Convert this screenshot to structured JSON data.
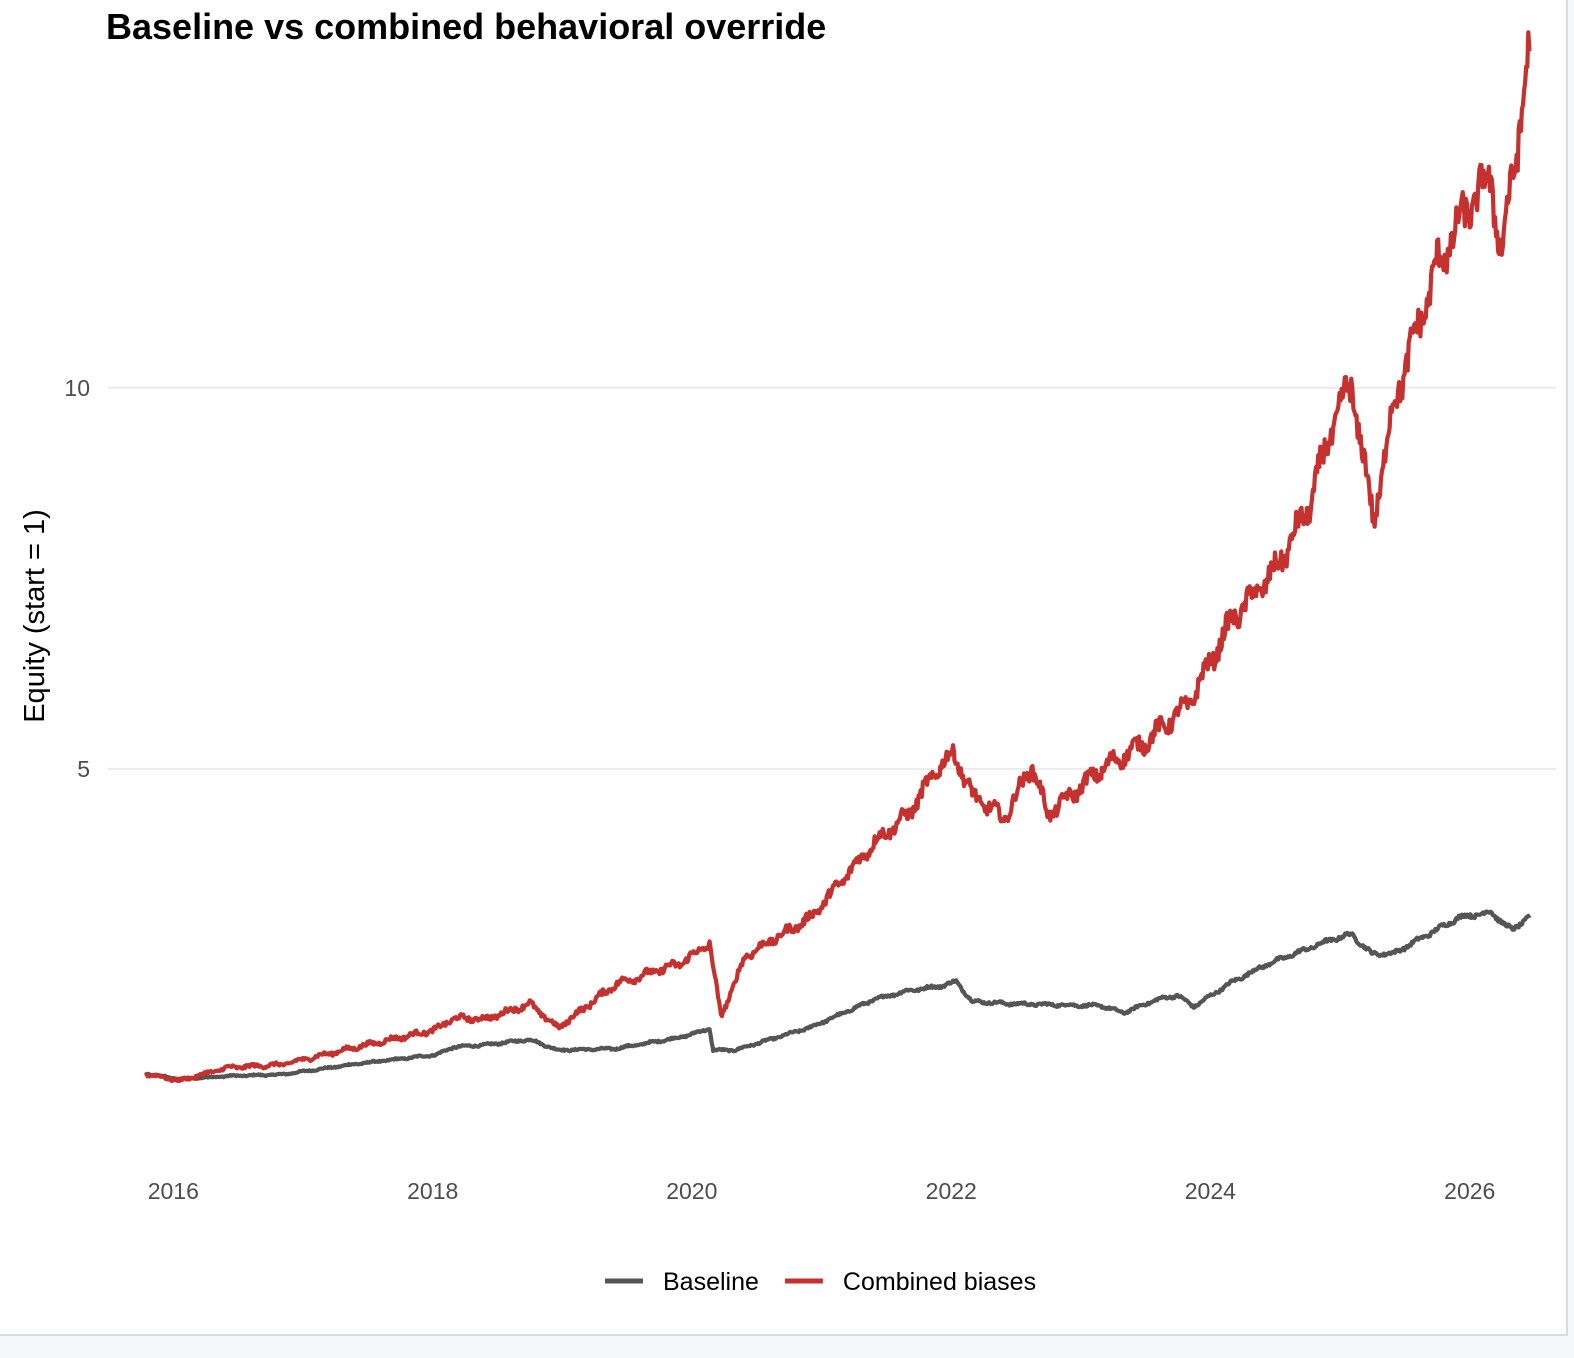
{
  "chart_data": {
    "type": "line",
    "title": "Baseline vs combined behavioral override",
    "xlabel": "",
    "ylabel": "Equity (start = 1)",
    "x_ticks": [
      "2016",
      "2018",
      "2020",
      "2022",
      "2024",
      "2026"
    ],
    "y_ticks": [
      5,
      10
    ],
    "ylim": [
      0.0,
      14.3
    ],
    "xlim": [
      "2015-07-01",
      "2026-09-01"
    ],
    "grid": "horizontal major only",
    "legend": "bottom",
    "colors": {
      "Baseline": "#555555",
      "Combined biases": "#c4312f"
    },
    "series": [
      {
        "name": "Baseline",
        "points": [
          [
            "2015-10-15",
            1.0
          ],
          [
            "2016-01-20",
            0.93
          ],
          [
            "2016-06-01",
            0.97
          ],
          [
            "2016-11-01",
            0.99
          ],
          [
            "2017-06-01",
            1.13
          ],
          [
            "2018-01-10",
            1.25
          ],
          [
            "2018-03-01",
            1.35
          ],
          [
            "2018-06-01",
            1.38
          ],
          [
            "2018-10-01",
            1.45
          ],
          [
            "2018-12-20",
            1.31
          ],
          [
            "2019-06-01",
            1.33
          ],
          [
            "2019-12-01",
            1.48
          ],
          [
            "2020-02-20",
            1.59
          ],
          [
            "2020-03-01",
            1.31
          ],
          [
            "2020-05-01",
            1.31
          ],
          [
            "2020-12-01",
            1.61
          ],
          [
            "2021-06-01",
            1.98
          ],
          [
            "2021-09-01",
            2.09
          ],
          [
            "2021-12-01",
            2.15
          ],
          [
            "2022-01-15",
            2.21
          ],
          [
            "2022-03-01",
            1.95
          ],
          [
            "2022-06-15",
            1.92
          ],
          [
            "2023-03-01",
            1.89
          ],
          [
            "2023-05-01",
            1.8
          ],
          [
            "2023-08-01",
            1.97
          ],
          [
            "2023-10-01",
            2.03
          ],
          [
            "2023-11-15",
            1.88
          ],
          [
            "2024-03-01",
            2.2
          ],
          [
            "2024-06-01",
            2.42
          ],
          [
            "2024-12-01",
            2.75
          ],
          [
            "2025-02-01",
            2.83
          ],
          [
            "2025-04-01",
            2.57
          ],
          [
            "2025-06-01",
            2.58
          ],
          [
            "2025-12-01",
            3.05
          ],
          [
            "2026-03-01",
            3.12
          ],
          [
            "2026-05-01",
            2.88
          ],
          [
            "2026-06-20",
            3.08
          ]
        ]
      },
      {
        "name": "Combined biases",
        "points": [
          [
            "2015-10-15",
            1.0
          ],
          [
            "2016-01-20",
            0.91
          ],
          [
            "2016-06-01",
            1.08
          ],
          [
            "2016-11-01",
            1.12
          ],
          [
            "2017-06-01",
            1.35
          ],
          [
            "2018-01-10",
            1.58
          ],
          [
            "2018-03-01",
            1.73
          ],
          [
            "2018-06-01",
            1.72
          ],
          [
            "2018-10-01",
            1.92
          ],
          [
            "2018-12-20",
            1.6
          ],
          [
            "2019-06-01",
            2.18
          ],
          [
            "2019-12-01",
            2.45
          ],
          [
            "2020-02-20",
            2.71
          ],
          [
            "2020-03-23",
            1.75
          ],
          [
            "2020-06-01",
            2.55
          ],
          [
            "2020-12-01",
            3.05
          ],
          [
            "2021-06-01",
            4.05
          ],
          [
            "2021-09-01",
            4.4
          ],
          [
            "2021-12-01",
            5.05
          ],
          [
            "2022-01-10",
            5.2
          ],
          [
            "2022-03-01",
            4.65
          ],
          [
            "2022-06-01",
            4.35
          ],
          [
            "2022-08-15",
            5.05
          ],
          [
            "2022-10-01",
            4.4
          ],
          [
            "2023-03-01",
            5.0
          ],
          [
            "2023-07-01",
            5.35
          ],
          [
            "2023-11-01",
            5.85
          ],
          [
            "2024-03-01",
            6.95
          ],
          [
            "2024-07-01",
            7.6
          ],
          [
            "2024-10-01",
            8.4
          ],
          [
            "2024-12-15",
            9.55
          ],
          [
            "2025-02-01",
            10.05
          ],
          [
            "2025-04-05",
            8.25
          ],
          [
            "2025-06-01",
            9.8
          ],
          [
            "2025-10-01",
            11.6
          ],
          [
            "2026-01-01",
            12.4
          ],
          [
            "2026-03-01",
            12.75
          ],
          [
            "2026-04-01",
            11.75
          ],
          [
            "2026-06-20",
            14.45
          ]
        ]
      }
    ]
  }
}
